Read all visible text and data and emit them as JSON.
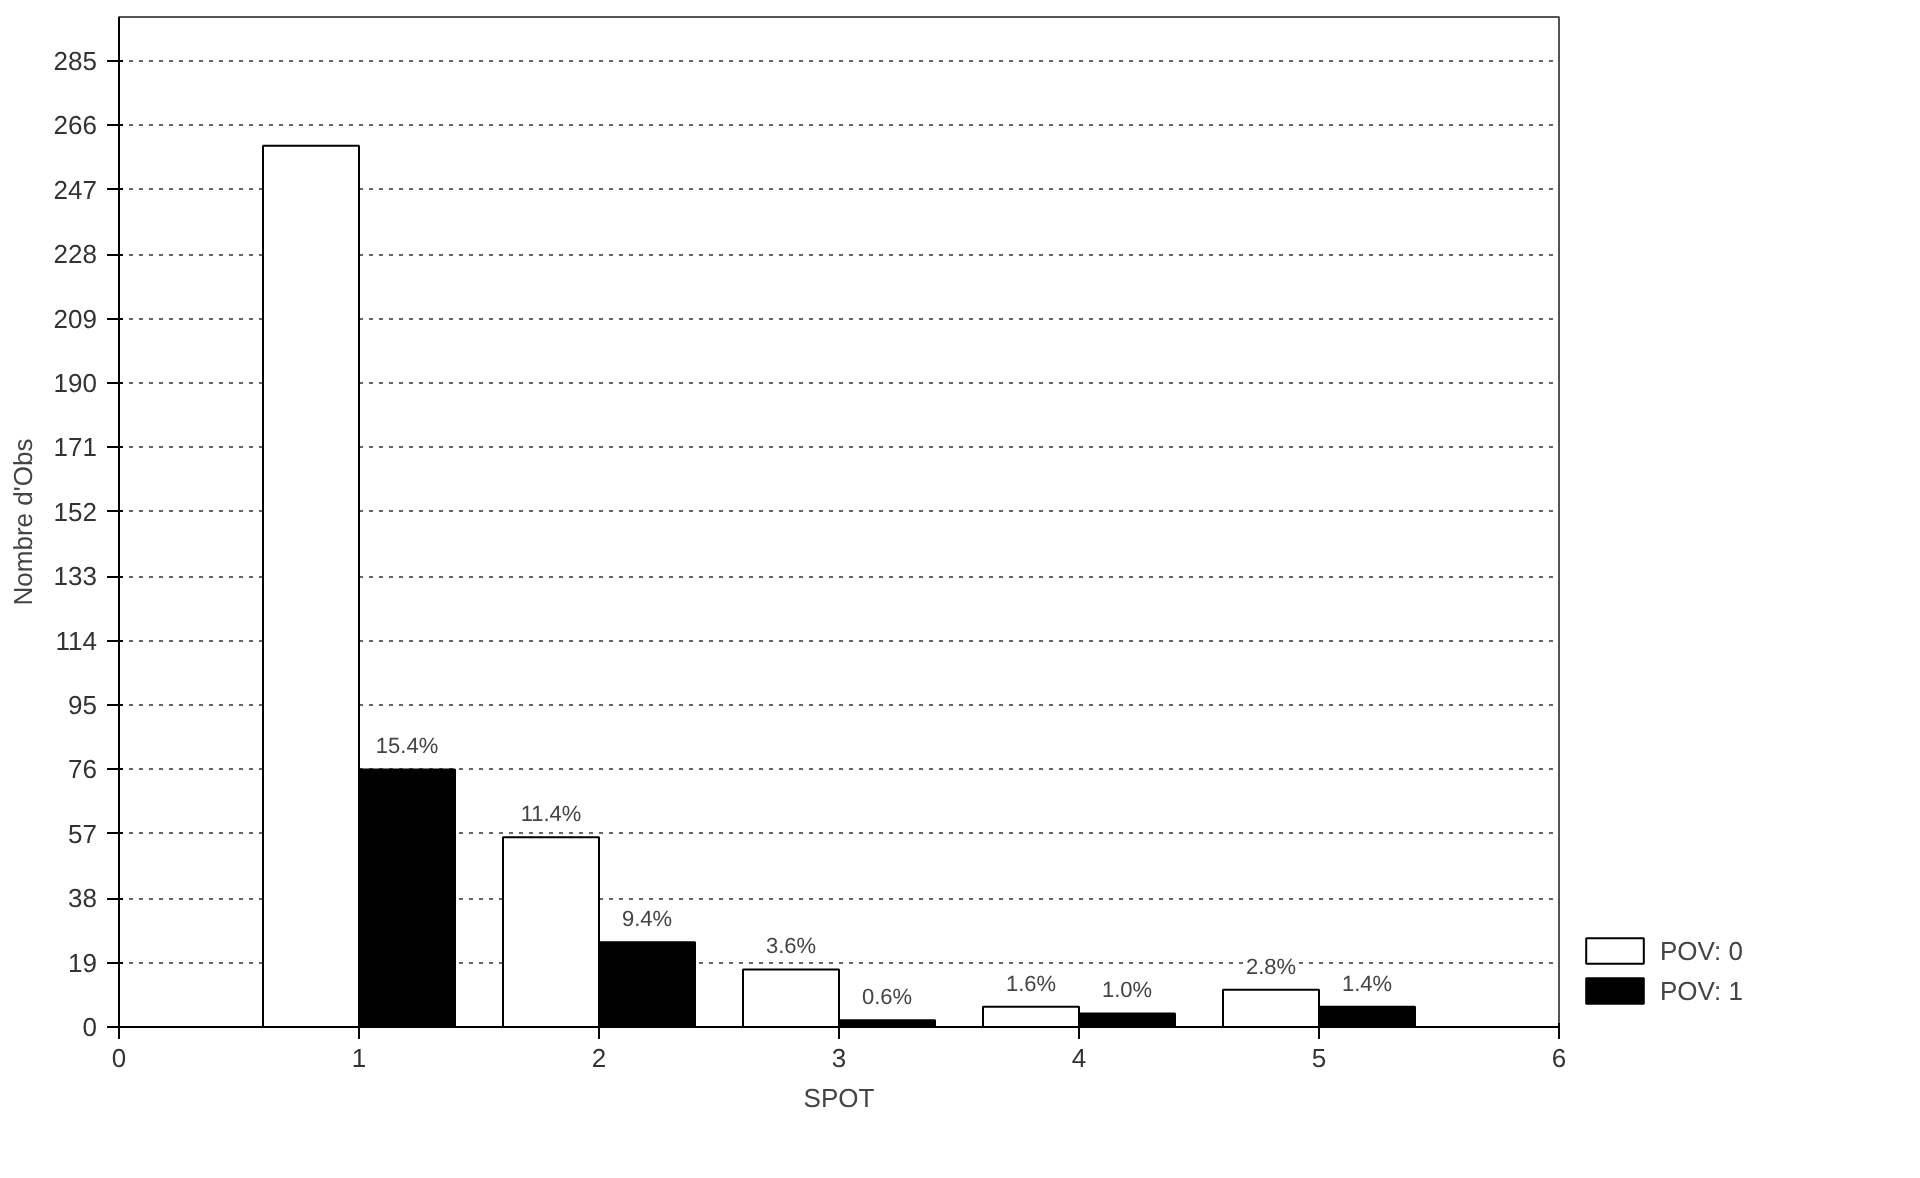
{
  "chart_data": {
    "type": "bar",
    "xlabel": "SPOT",
    "ylabel": "Nombre d'Obs",
    "x": [
      1,
      2,
      3,
      4,
      5
    ],
    "xlim": [
      0,
      6
    ],
    "xticks": [
      0,
      1,
      2,
      3,
      4,
      5,
      6
    ],
    "ylim": [
      0,
      298
    ],
    "yticks": [
      0,
      19,
      38,
      57,
      76,
      95,
      114,
      133,
      152,
      171,
      190,
      209,
      228,
      247,
      266,
      285
    ],
    "series": [
      {
        "name": "POV: 0",
        "color": "#ffffff",
        "values": [
          260,
          56,
          17,
          6,
          11
        ]
      },
      {
        "name": "POV: 1",
        "color": "#000000",
        "values": [
          76,
          25,
          2,
          4,
          6
        ]
      }
    ],
    "annotations": [
      {
        "text": "15.4%",
        "x": 1.2,
        "y": 76
      },
      {
        "text": "11.4%",
        "x": 1.8,
        "y": 56
      },
      {
        "text": "9.4%",
        "x": 2.2,
        "y": 25
      },
      {
        "text": "3.6%",
        "x": 2.8,
        "y": 17
      },
      {
        "text": "0.6%",
        "x": 3.2,
        "y": 2
      },
      {
        "text": "1.6%",
        "x": 3.8,
        "y": 6
      },
      {
        "text": "1.0%",
        "x": 4.2,
        "y": 4
      },
      {
        "text": "2.8%",
        "x": 4.8,
        "y": 11
      },
      {
        "text": "1.4%",
        "x": 5.2,
        "y": 6
      }
    ],
    "grid": "y",
    "legend": "right"
  }
}
